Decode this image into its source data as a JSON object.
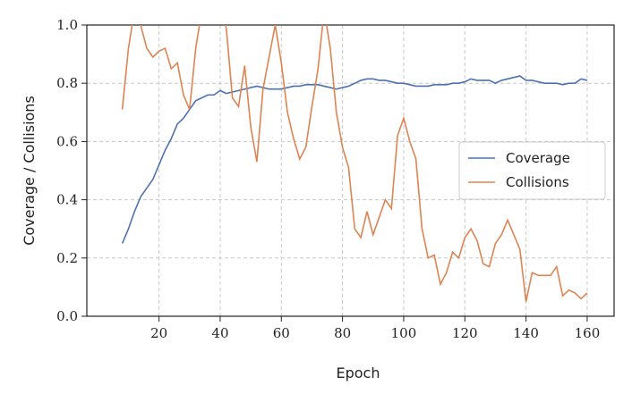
{
  "chart_data": {
    "type": "line",
    "x_label": "Epoch",
    "y_label": "Coverage / Collisions",
    "x": [
      8,
      10,
      12,
      14,
      16,
      18,
      20,
      22,
      24,
      26,
      28,
      30,
      32,
      34,
      36,
      38,
      40,
      42,
      44,
      46,
      48,
      50,
      52,
      54,
      56,
      58,
      60,
      62,
      64,
      66,
      68,
      70,
      72,
      74,
      76,
      78,
      80,
      82,
      84,
      86,
      88,
      90,
      92,
      94,
      96,
      98,
      100,
      102,
      104,
      106,
      108,
      110,
      112,
      114,
      116,
      118,
      120,
      122,
      124,
      126,
      128,
      130,
      132,
      134,
      136,
      138,
      140,
      142,
      144,
      146,
      148,
      150,
      152,
      154,
      156,
      158,
      160
    ],
    "series": [
      {
        "name": "Coverage",
        "color": "#4c72b0",
        "values": [
          0.25,
          0.3,
          0.36,
          0.41,
          0.44,
          0.47,
          0.52,
          0.57,
          0.61,
          0.66,
          0.68,
          0.71,
          0.74,
          0.75,
          0.76,
          0.76,
          0.775,
          0.765,
          0.77,
          0.775,
          0.78,
          0.785,
          0.79,
          0.785,
          0.78,
          0.78,
          0.78,
          0.785,
          0.79,
          0.79,
          0.795,
          0.795,
          0.795,
          0.79,
          0.785,
          0.78,
          0.785,
          0.79,
          0.8,
          0.81,
          0.815,
          0.815,
          0.81,
          0.81,
          0.805,
          0.8,
          0.8,
          0.795,
          0.79,
          0.79,
          0.79,
          0.795,
          0.795,
          0.795,
          0.8,
          0.8,
          0.805,
          0.815,
          0.81,
          0.81,
          0.81,
          0.8,
          0.81,
          0.815,
          0.82,
          0.825,
          0.81,
          0.81,
          0.805,
          0.8,
          0.8,
          0.8,
          0.795,
          0.8,
          0.8,
          0.815,
          0.81
        ]
      },
      {
        "name": "Collisions",
        "color": "#dd8452",
        "values": [
          0.71,
          0.92,
          1.05,
          1.0,
          0.92,
          0.89,
          0.91,
          0.92,
          0.85,
          0.87,
          0.76,
          0.71,
          0.92,
          1.05,
          1.05,
          1.05,
          1.05,
          0.99,
          0.75,
          0.72,
          0.86,
          0.65,
          0.53,
          0.78,
          0.89,
          1.0,
          0.87,
          0.7,
          0.61,
          0.54,
          0.58,
          0.72,
          0.85,
          1.05,
          0.92,
          0.7,
          0.58,
          0.51,
          0.3,
          0.27,
          0.36,
          0.28,
          0.34,
          0.4,
          0.37,
          0.62,
          0.68,
          0.6,
          0.54,
          0.3,
          0.2,
          0.21,
          0.11,
          0.15,
          0.22,
          0.2,
          0.27,
          0.3,
          0.26,
          0.18,
          0.17,
          0.25,
          0.28,
          0.33,
          0.28,
          0.23,
          0.05,
          0.15,
          0.14,
          0.14,
          0.14,
          0.17,
          0.07,
          0.09,
          0.08,
          0.06,
          0.08
        ]
      }
    ],
    "xlim": [
      -3.6,
      168.8
    ],
    "ylim": [
      0,
      1
    ],
    "xticks": [
      20,
      40,
      60,
      80,
      100,
      120,
      140,
      160
    ],
    "yticks": [
      {
        "value": 0,
        "label": "0.0"
      },
      {
        "value": 0.2,
        "label": "0.2"
      },
      {
        "value": 0.4,
        "label": "0.4"
      },
      {
        "value": 0.6,
        "label": "0.6"
      },
      {
        "value": 0.8,
        "label": "0.8"
      },
      {
        "value": 1,
        "label": "1.0"
      }
    ],
    "grid": true,
    "legend": "center right"
  }
}
